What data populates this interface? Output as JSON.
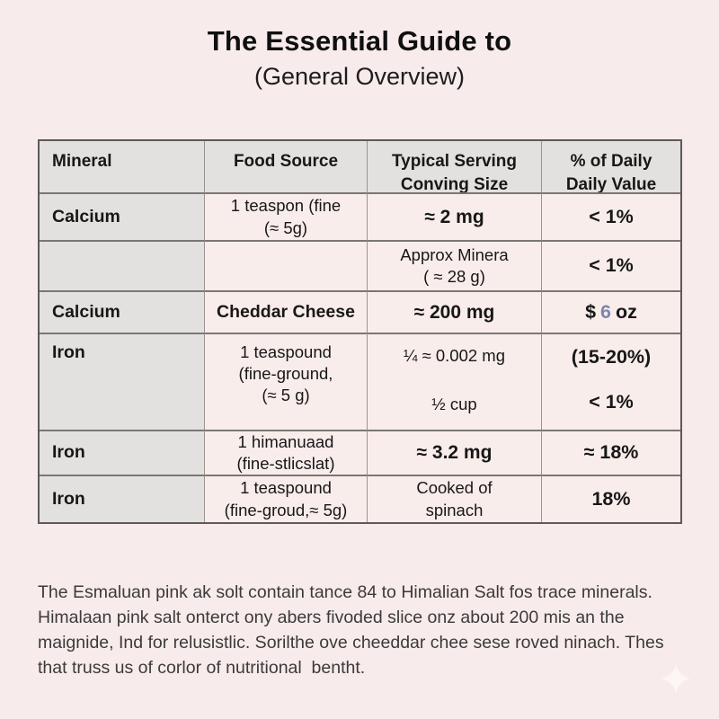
{
  "title": "The Essential Guide to",
  "subtitle": "(General Overview)",
  "table": {
    "headers": {
      "mineral": [
        "Mineral"
      ],
      "food": [
        "Food Source"
      ],
      "serving": [
        "Typical Serving",
        "Conving Size"
      ],
      "daily": [
        "% of Daily",
        "Daily Value"
      ]
    },
    "rows": [
      {
        "mineral": "Calcium",
        "food": [
          "1 teaspon (fine",
          "(≈ 5g)"
        ],
        "serving": [
          "≈ 2 mg"
        ],
        "daily": [
          "< 1%"
        ]
      },
      {
        "mineral": "",
        "food": [],
        "serving": [
          "Approx Minera",
          "( ≈ 28 g)"
        ],
        "daily": [
          "< 1%"
        ]
      },
      {
        "mineral": "Calcium",
        "food": [
          "Cheddar Cheese"
        ],
        "serving": [
          "≈ 200 mg"
        ],
        "daily_prefix": "$",
        "daily_digit": "6",
        "daily_suffix": "oz"
      },
      {
        "mineral": "Iron",
        "food": [
          "1 teaspound",
          "(fine-ground,",
          "(≈ 5 g)"
        ],
        "serving_top": [
          "¼ ≈ 0.002 mg"
        ],
        "serving_bottom": [
          "½ cup"
        ],
        "daily_top": [
          "(15-20%)"
        ],
        "daily_bottom": [
          "< 1%"
        ]
      },
      {
        "mineral": "Iron",
        "food": [
          "1 himanuaad",
          "(fine-stlicslat)"
        ],
        "serving": [
          "≈ 3.2 mg"
        ],
        "daily": [
          "≈ 18%"
        ]
      },
      {
        "mineral": "Iron",
        "food": [
          "1 teaspound",
          "(fine-groud,≈ 5g)"
        ],
        "serving": [
          "Cooked of",
          "spinach"
        ],
        "daily": [
          "18%"
        ]
      }
    ]
  },
  "footer": {
    "lines": [
      "The Esmaluan pink ak solt contain tance 84 to Himalian Salt fos trace minerals.",
      "Himalaan pink salt onterct ony abers fivoded slice onz about 200 mis an the",
      "maignide, Ind for relusistlic. Sorilthe ove cheeddar chee sese roved ninach. Thes",
      "that truss us of corlor of nutritional  bentht."
    ]
  },
  "icons": {
    "sparkle": "four-point-star"
  },
  "colors": {
    "background": "#f8ebeb",
    "cell_pink": "#f9edeb",
    "cell_gray": "#e3e1df",
    "border_dark": "#5d5a58",
    "border_light": "#98948f",
    "text": "#171717",
    "footer_text": "#3c3a3a",
    "accent_digit": "#7d87ad",
    "sparkle": "#fdf7f3"
  }
}
